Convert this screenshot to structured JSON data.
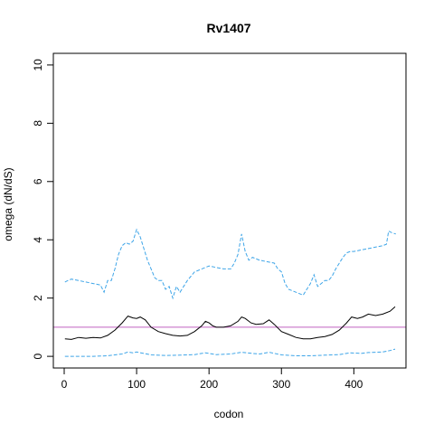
{
  "chart_data": {
    "type": "line",
    "title": "Rv1407",
    "xlabel": "codon",
    "ylabel": "omega (dN/dS)",
    "xlim": [
      -15,
      472
    ],
    "ylim": [
      -0.4,
      10.4
    ],
    "x_ticks": [
      0,
      100,
      200,
      300,
      400
    ],
    "y_ticks": [
      0,
      2,
      4,
      6,
      8,
      10
    ],
    "reference_line": {
      "y": 1,
      "color": "#c060c0"
    },
    "series": [
      {
        "style": "solid",
        "color": "#000000",
        "points": [
          [
            1,
            0.6
          ],
          [
            10,
            0.58
          ],
          [
            20,
            0.65
          ],
          [
            30,
            0.62
          ],
          [
            40,
            0.65
          ],
          [
            50,
            0.63
          ],
          [
            60,
            0.72
          ],
          [
            70,
            0.9
          ],
          [
            80,
            1.15
          ],
          [
            88,
            1.38
          ],
          [
            95,
            1.32
          ],
          [
            100,
            1.3
          ],
          [
            105,
            1.35
          ],
          [
            112,
            1.25
          ],
          [
            120,
            1.0
          ],
          [
            130,
            0.85
          ],
          [
            140,
            0.78
          ],
          [
            150,
            0.72
          ],
          [
            160,
            0.7
          ],
          [
            170,
            0.72
          ],
          [
            180,
            0.85
          ],
          [
            190,
            1.05
          ],
          [
            195,
            1.2
          ],
          [
            200,
            1.15
          ],
          [
            205,
            1.05
          ],
          [
            210,
            1.0
          ],
          [
            220,
            1.0
          ],
          [
            230,
            1.05
          ],
          [
            240,
            1.2
          ],
          [
            245,
            1.35
          ],
          [
            250,
            1.3
          ],
          [
            258,
            1.15
          ],
          [
            265,
            1.1
          ],
          [
            275,
            1.12
          ],
          [
            283,
            1.25
          ],
          [
            290,
            1.1
          ],
          [
            300,
            0.85
          ],
          [
            310,
            0.75
          ],
          [
            320,
            0.65
          ],
          [
            330,
            0.6
          ],
          [
            340,
            0.6
          ],
          [
            350,
            0.65
          ],
          [
            360,
            0.68
          ],
          [
            370,
            0.75
          ],
          [
            380,
            0.9
          ],
          [
            390,
            1.15
          ],
          [
            397,
            1.35
          ],
          [
            405,
            1.3
          ],
          [
            412,
            1.35
          ],
          [
            420,
            1.45
          ],
          [
            430,
            1.4
          ],
          [
            440,
            1.45
          ],
          [
            450,
            1.55
          ],
          [
            457,
            1.7
          ]
        ]
      },
      {
        "style": "dashed",
        "color": "#3ea5e8",
        "points": [
          [
            1,
            2.55
          ],
          [
            5,
            2.6
          ],
          [
            10,
            2.65
          ],
          [
            20,
            2.6
          ],
          [
            30,
            2.55
          ],
          [
            40,
            2.5
          ],
          [
            50,
            2.45
          ],
          [
            55,
            2.2
          ],
          [
            60,
            2.6
          ],
          [
            65,
            2.6
          ],
          [
            70,
            3.0
          ],
          [
            75,
            3.5
          ],
          [
            80,
            3.8
          ],
          [
            85,
            3.9
          ],
          [
            90,
            3.85
          ],
          [
            95,
            3.95
          ],
          [
            100,
            4.35
          ],
          [
            105,
            4.1
          ],
          [
            110,
            3.7
          ],
          [
            115,
            3.3
          ],
          [
            120,
            3.0
          ],
          [
            125,
            2.7
          ],
          [
            130,
            2.6
          ],
          [
            135,
            2.6
          ],
          [
            140,
            2.3
          ],
          [
            145,
            2.4
          ],
          [
            150,
            2.0
          ],
          [
            155,
            2.4
          ],
          [
            160,
            2.2
          ],
          [
            165,
            2.4
          ],
          [
            170,
            2.6
          ],
          [
            175,
            2.75
          ],
          [
            180,
            2.9
          ],
          [
            185,
            2.95
          ],
          [
            190,
            3.0
          ],
          [
            200,
            3.1
          ],
          [
            210,
            3.05
          ],
          [
            220,
            3.0
          ],
          [
            230,
            3.0
          ],
          [
            235,
            3.2
          ],
          [
            240,
            3.5
          ],
          [
            245,
            4.2
          ],
          [
            250,
            3.6
          ],
          [
            255,
            3.3
          ],
          [
            260,
            3.4
          ],
          [
            270,
            3.3
          ],
          [
            280,
            3.25
          ],
          [
            290,
            3.2
          ],
          [
            295,
            3.0
          ],
          [
            300,
            2.9
          ],
          [
            305,
            2.5
          ],
          [
            310,
            2.3
          ],
          [
            320,
            2.2
          ],
          [
            330,
            2.1
          ],
          [
            335,
            2.3
          ],
          [
            340,
            2.5
          ],
          [
            345,
            2.8
          ],
          [
            350,
            2.4
          ],
          [
            360,
            2.6
          ],
          [
            365,
            2.6
          ],
          [
            370,
            2.75
          ],
          [
            375,
            3.0
          ],
          [
            380,
            3.2
          ],
          [
            385,
            3.4
          ],
          [
            390,
            3.55
          ],
          [
            395,
            3.6
          ],
          [
            400,
            3.6
          ],
          [
            410,
            3.65
          ],
          [
            420,
            3.7
          ],
          [
            430,
            3.75
          ],
          [
            440,
            3.8
          ],
          [
            445,
            3.85
          ],
          [
            448,
            4.3
          ],
          [
            452,
            4.25
          ],
          [
            458,
            4.2
          ]
        ]
      },
      {
        "style": "dashed",
        "color": "#3ea5e8",
        "points": [
          [
            1,
            0.0
          ],
          [
            20,
            0.0
          ],
          [
            40,
            0.0
          ],
          [
            60,
            0.02
          ],
          [
            70,
            0.05
          ],
          [
            80,
            0.08
          ],
          [
            88,
            0.15
          ],
          [
            95,
            0.12
          ],
          [
            100,
            0.15
          ],
          [
            110,
            0.1
          ],
          [
            120,
            0.05
          ],
          [
            140,
            0.03
          ],
          [
            160,
            0.04
          ],
          [
            180,
            0.06
          ],
          [
            195,
            0.12
          ],
          [
            210,
            0.06
          ],
          [
            230,
            0.08
          ],
          [
            245,
            0.14
          ],
          [
            260,
            0.1
          ],
          [
            270,
            0.08
          ],
          [
            283,
            0.14
          ],
          [
            300,
            0.05
          ],
          [
            320,
            0.02
          ],
          [
            340,
            0.02
          ],
          [
            360,
            0.04
          ],
          [
            380,
            0.06
          ],
          [
            395,
            0.12
          ],
          [
            410,
            0.1
          ],
          [
            420,
            0.13
          ],
          [
            430,
            0.14
          ],
          [
            440,
            0.15
          ],
          [
            450,
            0.2
          ],
          [
            457,
            0.25
          ]
        ]
      }
    ]
  }
}
